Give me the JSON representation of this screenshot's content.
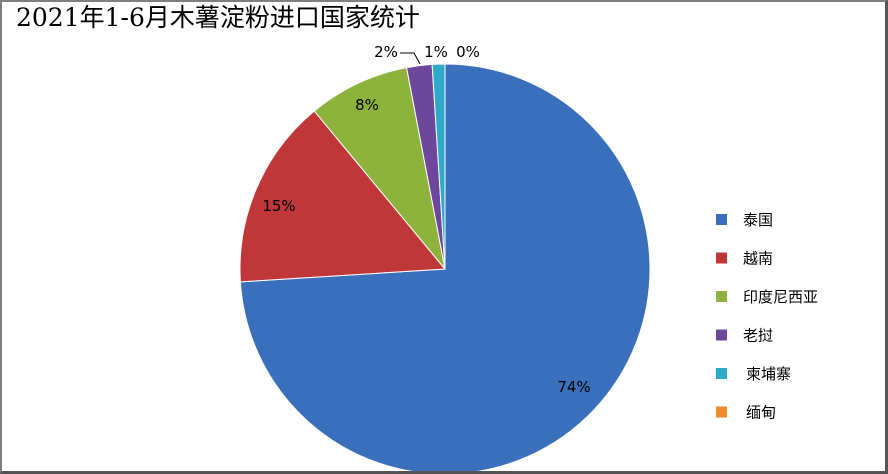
{
  "chart_data": {
    "type": "pie",
    "title": "2021年1-6月木薯淀粉进口国家统计",
    "categories": [
      "泰国",
      "越南",
      "印度尼西亚",
      "老挝",
      "柬埔寨",
      "缅甸"
    ],
    "values": [
      74,
      15,
      8,
      2,
      1,
      0
    ],
    "data_labels": [
      "74%",
      "15%",
      "8%",
      "2%",
      "1%",
      "0%"
    ],
    "colors": [
      "#3a6fbb",
      "#c0373a",
      "#8db33d",
      "#6d479c",
      "#2fa9c8",
      "#ec8a2d"
    ],
    "legend": "right",
    "start_angle": "top, clockwise"
  }
}
